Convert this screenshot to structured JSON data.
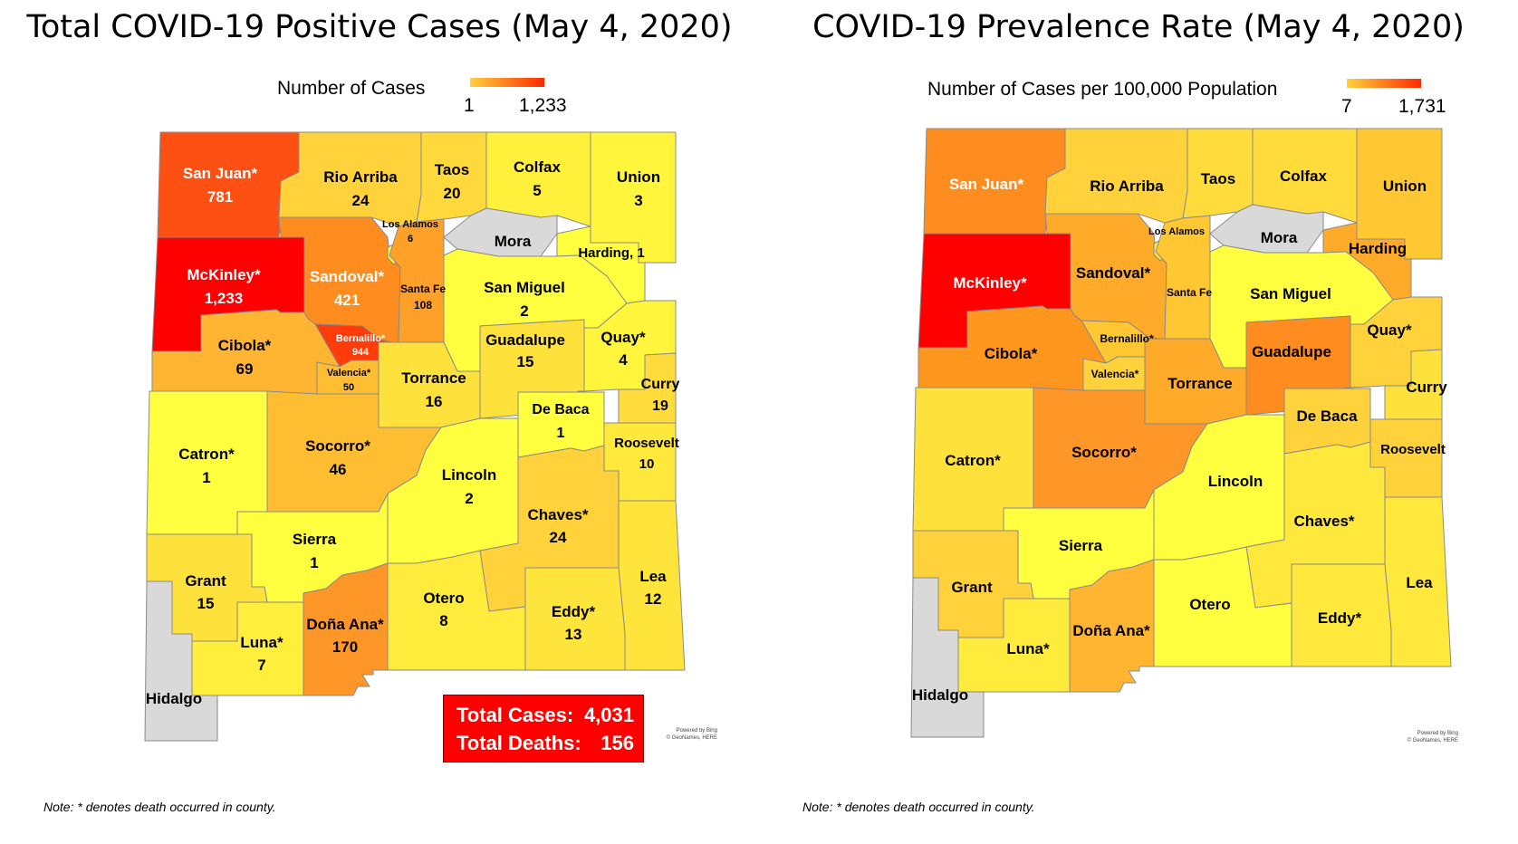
{
  "left": {
    "title": "Total COVID-19 Positive Cases (May 4, 2020)",
    "legend": {
      "label": "Number of Cases",
      "min": "1",
      "max": "1,233"
    },
    "counties": {
      "san_juan": {
        "name": "San Juan*",
        "value": "781",
        "color": "#ff5014"
      },
      "rio_arriba": {
        "name": "Rio Arriba",
        "value": "24",
        "color": "#ffd23c"
      },
      "taos": {
        "name": "Taos",
        "value": "20",
        "color": "#ffd93b"
      },
      "colfax": {
        "name": "Colfax",
        "value": "5",
        "color": "#fff03c"
      },
      "union": {
        "name": "Union",
        "value": "3",
        "color": "#fff53c"
      },
      "los_alamos": {
        "name": "Los Alamos",
        "value": "6",
        "color": "#ffee3c"
      },
      "mora": {
        "name": "Mora",
        "color": "#d9d9d9"
      },
      "harding": {
        "name": "Harding, 1",
        "color": "#ffff40"
      },
      "mckinley": {
        "name": "McKinley*",
        "value": "1,233",
        "color": "#ff0000"
      },
      "sandoval": {
        "name": "Sandoval*",
        "value": "421",
        "color": "#ff8c1e"
      },
      "santa_fe": {
        "name": "Santa Fe",
        "value": "108",
        "color": "#ffa028"
      },
      "san_miguel": {
        "name": "San Miguel",
        "value": "2",
        "color": "#ffff40"
      },
      "bernalillo": {
        "name": "Bernalillo*",
        "value": "944",
        "color": "#ff3c0a"
      },
      "cibola": {
        "name": "Cibola*",
        "value": "69",
        "color": "#ffb432"
      },
      "guadalupe": {
        "name": "Guadalupe",
        "value": "15",
        "color": "#ffe13c"
      },
      "quay": {
        "name": "Quay*",
        "value": "4",
        "color": "#fff53c"
      },
      "valencia": {
        "name": "Valencia*",
        "value": "50",
        "color": "#ffbe32"
      },
      "torrance": {
        "name": "Torrance",
        "value": "16",
        "color": "#ffe13c"
      },
      "curry": {
        "name": "Curry",
        "value": "19",
        "color": "#ffdc3c"
      },
      "de_baca": {
        "name": "De Baca",
        "value": "1",
        "color": "#ffff40"
      },
      "roosevelt": {
        "name": "Roosevelt",
        "value": "10",
        "color": "#ffe83c"
      },
      "catron": {
        "name": "Catron*",
        "value": "1",
        "color": "#ffff40"
      },
      "socorro": {
        "name": "Socorro*",
        "value": "46",
        "color": "#ffbe32"
      },
      "lincoln": {
        "name": "Lincoln",
        "value": "2",
        "color": "#ffff40"
      },
      "chaves": {
        "name": "Chaves*",
        "value": "24",
        "color": "#ffd23c"
      },
      "sierra": {
        "name": "Sierra",
        "value": "1",
        "color": "#ffff40"
      },
      "grant": {
        "name": "Grant",
        "value": "15",
        "color": "#ffe13c"
      },
      "otero": {
        "name": "Otero",
        "value": "8",
        "color": "#ffeb3c"
      },
      "lea": {
        "name": "Lea",
        "value": "12",
        "color": "#ffe43c"
      },
      "eddy": {
        "name": "Eddy*",
        "value": "13",
        "color": "#ffe43c"
      },
      "luna": {
        "name": "Luna*",
        "value": "7",
        "color": "#ffee3c"
      },
      "dona_ana": {
        "name": "Doña Ana*",
        "value": "170",
        "color": "#ff9628"
      },
      "hidalgo": {
        "name": "Hidalgo",
        "color": "#d9d9d9"
      }
    },
    "totals": {
      "cases_label": "Total Cases:",
      "cases": "4,031",
      "deaths_label": "Total Deaths:",
      "deaths": "156"
    },
    "credit": [
      "Powered by Bing",
      "© GeoNames, HERE"
    ],
    "note": "Note: * denotes death occurred in county."
  },
  "right": {
    "title": "COVID-19 Prevalence Rate (May 4, 2020)",
    "legend": {
      "label": "Number of Cases per 100,000 Population",
      "min": "7",
      "max": "1,731"
    },
    "counties": {
      "san_juan": {
        "name": "San Juan*",
        "color": "#ff8c1e"
      },
      "rio_arriba": {
        "name": "Rio Arriba",
        "color": "#ffd23c"
      },
      "taos": {
        "name": "Taos",
        "color": "#ffdc3c"
      },
      "colfax": {
        "name": "Colfax",
        "color": "#ffdc3c"
      },
      "union": {
        "name": "Union",
        "color": "#ffc832"
      },
      "los_alamos": {
        "name": "Los Alamos",
        "color": "#ffeb3c"
      },
      "mora": {
        "name": "Mora",
        "color": "#d9d9d9"
      },
      "harding": {
        "name": "Harding",
        "color": "#ffaa28"
      },
      "mckinley": {
        "name": "McKinley*",
        "color": "#ff0000"
      },
      "sandoval": {
        "name": "Sandoval*",
        "color": "#ffaa28"
      },
      "santa_fe": {
        "name": "Santa Fe",
        "color": "#ffc832"
      },
      "san_miguel": {
        "name": "San Miguel",
        "color": "#ffff40"
      },
      "bernalillo": {
        "name": "Bernalillo*",
        "color": "#ffc832"
      },
      "cibola": {
        "name": "Cibola*",
        "color": "#ff961e"
      },
      "guadalupe": {
        "name": "Guadalupe",
        "color": "#ff8c1e"
      },
      "quay": {
        "name": "Quay*",
        "color": "#ffd23c"
      },
      "valencia": {
        "name": "Valencia*",
        "color": "#ffd23c"
      },
      "torrance": {
        "name": "Torrance",
        "color": "#ffaa28"
      },
      "curry": {
        "name": "Curry",
        "color": "#ffe13c"
      },
      "de_baca": {
        "name": "De Baca",
        "color": "#ffd23c"
      },
      "roosevelt": {
        "name": "Roosevelt",
        "color": "#ffd23c"
      },
      "catron": {
        "name": "Catron*",
        "color": "#ffe13c"
      },
      "socorro": {
        "name": "Socorro*",
        "color": "#ff9628"
      },
      "lincoln": {
        "name": "Lincoln",
        "color": "#ffff40"
      },
      "chaves": {
        "name": "Chaves*",
        "color": "#ffe83c"
      },
      "sierra": {
        "name": "Sierra",
        "color": "#ffff40"
      },
      "grant": {
        "name": "Grant",
        "color": "#ffd23c"
      },
      "otero": {
        "name": "Otero",
        "color": "#ffff40"
      },
      "lea": {
        "name": "Lea",
        "color": "#ffe83c"
      },
      "eddy": {
        "name": "Eddy*",
        "color": "#ffe83c"
      },
      "luna": {
        "name": "Luna*",
        "color": "#ffeb3c"
      },
      "dona_ana": {
        "name": "Doña Ana*",
        "color": "#ffb432"
      },
      "hidalgo": {
        "name": "Hidalgo",
        "color": "#d9d9d9"
      }
    },
    "credit": [
      "Powered by Bing",
      "© GeoNames, HERE"
    ],
    "note": "Note: * denotes death occurred in county."
  }
}
